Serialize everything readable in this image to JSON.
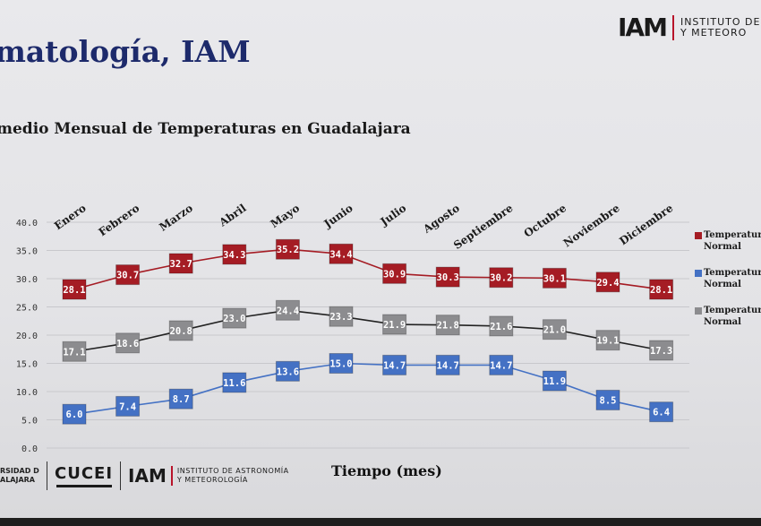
{
  "header": {
    "title": "matología, IAM",
    "subtitle": "medio Mensual de Temperaturas en Guadalajara"
  },
  "logos": {
    "top_mark": "IAM",
    "top_text_line1": "INSTITUTO DE ASTR",
    "top_text_line2": "Y METEORO",
    "udg_line1": "RSIDAD DE",
    "udg_line2": "ALAJARA",
    "cucei": "CUCEI",
    "bottom_mark": "IAM",
    "bottom_text_line1": "INSTITUTO DE ASTRONOMÍA",
    "bottom_text_line2": "Y METEOROLOGÍA"
  },
  "colors": {
    "max": "#a51c24",
    "min": "#4471c4",
    "mean": "#8c8c8f",
    "title": "#1d2a6b",
    "accent": "#b8142a"
  },
  "chart_data": {
    "type": "line",
    "title": "medio Mensual de Temperaturas en Guadalajara",
    "xlabel": "Tiempo (mes)",
    "ylabel": "",
    "ylim": [
      0,
      40
    ],
    "yticks": [
      "0.0",
      "5.0",
      "10.0",
      "15.0",
      "20.0",
      "25.0",
      "30.0",
      "35.0",
      "40.0"
    ],
    "grid": true,
    "legend_position": "right",
    "categories": [
      "Enero",
      "Febrero",
      "Marzo",
      "Abril",
      "Mayo",
      "Junio",
      "Julio",
      "Agosto",
      "Septiembre",
      "Octubre",
      "Noviembre",
      "Diciembre"
    ],
    "series": [
      {
        "name_line1": "Temperatura",
        "name_line2": "Normal",
        "key": "max",
        "values": [
          28.1,
          30.7,
          32.7,
          34.3,
          35.2,
          34.4,
          30.9,
          30.3,
          30.2,
          30.1,
          29.4,
          28.1
        ],
        "labels": [
          "28.1",
          "30.7",
          "32.7",
          "34.3",
          "35.2",
          "34.4",
          "30.9",
          "30.3",
          "30.2",
          "30.1",
          "29.4",
          "28.1"
        ]
      },
      {
        "name_line1": "Temperatura",
        "name_line2": "Normal",
        "key": "min",
        "values": [
          6.0,
          7.4,
          8.7,
          11.6,
          13.6,
          15.0,
          14.7,
          14.7,
          14.7,
          11.9,
          8.5,
          6.4
        ],
        "labels": [
          "6.0",
          "7.4",
          "8.7",
          "11.6",
          "13.6",
          "15.0",
          "14.7",
          "14.7",
          "14.7",
          "11.9",
          "8.5",
          "6.4"
        ]
      },
      {
        "name_line1": "Temperatura",
        "name_line2": "Normal",
        "key": "mean",
        "values": [
          17.1,
          18.6,
          20.8,
          23.0,
          24.4,
          23.3,
          21.9,
          21.8,
          21.6,
          21.0,
          19.1,
          17.3
        ],
        "labels": [
          "17.1",
          "18.6",
          "20.8",
          "23.0",
          "24.4",
          "23.3",
          "21.9",
          "21.8",
          "21.6",
          "21.0",
          "19.1",
          "17.3"
        ]
      }
    ]
  }
}
